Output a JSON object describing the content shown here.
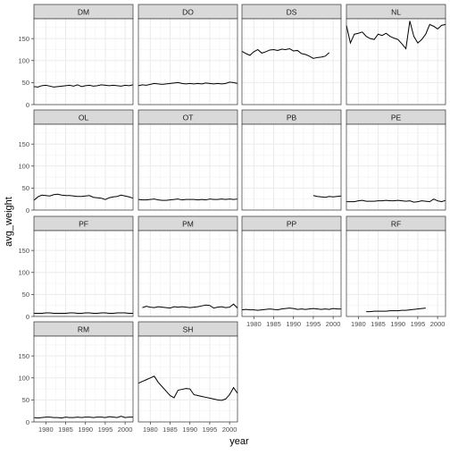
{
  "chart_data": {
    "type": "line",
    "xlabel": "year",
    "ylabel": "avg_weight",
    "xlim": [
      1977,
      2002
    ],
    "ylim": [
      0,
      195
    ],
    "x_ticks": [
      1980,
      1985,
      1990,
      1995,
      2000
    ],
    "x_tick_labels": [
      "1980",
      "1985",
      "1990",
      "1995",
      "2000"
    ],
    "y_ticks": [
      0,
      50,
      100,
      150
    ],
    "y_tick_labels": [
      "0",
      "50",
      "100",
      "150"
    ],
    "grid": true,
    "facets": [
      {
        "name": "DM",
        "x": [
          1977,
          1978,
          1979,
          1980,
          1981,
          1982,
          1983,
          1984,
          1985,
          1986,
          1987,
          1988,
          1989,
          1990,
          1991,
          1992,
          1993,
          1994,
          1995,
          1996,
          1997,
          1998,
          1999,
          2000,
          2001,
          2002
        ],
        "y": [
          41,
          40,
          43,
          44,
          42,
          40,
          41,
          42,
          43,
          44,
          42,
          45,
          41,
          43,
          44,
          42,
          43,
          45,
          44,
          43,
          44,
          43,
          42,
          44,
          43,
          45
        ]
      },
      {
        "name": "DO",
        "x": [
          1977,
          1978,
          1979,
          1980,
          1981,
          1982,
          1983,
          1984,
          1985,
          1986,
          1987,
          1988,
          1989,
          1990,
          1991,
          1992,
          1993,
          1994,
          1995,
          1996,
          1997,
          1998,
          1999,
          2000,
          2001,
          2002
        ],
        "y": [
          43,
          45,
          44,
          46,
          48,
          47,
          46,
          47,
          48,
          49,
          50,
          48,
          47,
          48,
          47,
          48,
          47,
          49,
          48,
          47,
          48,
          47,
          48,
          51,
          50,
          48
        ]
      },
      {
        "name": "DS",
        "x": [
          1977,
          1978,
          1979,
          1980,
          1981,
          1982,
          1983,
          1984,
          1985,
          1986,
          1987,
          1988,
          1989,
          1990,
          1991,
          1992,
          1993,
          1994,
          1995,
          1996,
          1997,
          1998,
          1999
        ],
        "y": [
          121,
          116,
          112,
          120,
          125,
          117,
          120,
          124,
          125,
          123,
          126,
          125,
          127,
          122,
          123,
          116,
          114,
          110,
          105,
          107,
          108,
          110,
          118
        ]
      },
      {
        "name": "NL",
        "x": [
          1977,
          1978,
          1979,
          1980,
          1981,
          1982,
          1983,
          1984,
          1985,
          1986,
          1987,
          1988,
          1989,
          1990,
          1991,
          1992,
          1993,
          1994,
          1995,
          1996,
          1997,
          1998,
          1999,
          2000,
          2001,
          2002
        ],
        "y": [
          180,
          140,
          160,
          162,
          165,
          155,
          150,
          148,
          160,
          157,
          162,
          155,
          151,
          148,
          138,
          127,
          190,
          155,
          140,
          148,
          160,
          182,
          178,
          172,
          180,
          182
        ]
      },
      {
        "name": "OL",
        "x": [
          1977,
          1978,
          1979,
          1980,
          1981,
          1982,
          1983,
          1984,
          1985,
          1986,
          1987,
          1988,
          1989,
          1990,
          1991,
          1992,
          1993,
          1994,
          1995,
          1996,
          1997,
          1998,
          1999,
          2000,
          2001,
          2002
        ],
        "y": [
          22,
          30,
          34,
          33,
          32,
          35,
          36,
          34,
          33,
          33,
          32,
          31,
          31,
          32,
          33,
          29,
          28,
          27,
          24,
          28,
          30,
          31,
          34,
          32,
          30,
          27
        ]
      },
      {
        "name": "OT",
        "x": [
          1977,
          1978,
          1979,
          1980,
          1981,
          1982,
          1983,
          1984,
          1985,
          1986,
          1987,
          1988,
          1989,
          1990,
          1991,
          1992,
          1993,
          1994,
          1995,
          1996,
          1997,
          1998,
          1999,
          2000,
          2001,
          2002
        ],
        "y": [
          24,
          23,
          23,
          24,
          25,
          23,
          22,
          22,
          23,
          24,
          25,
          23,
          24,
          24,
          24,
          23,
          24,
          23,
          25,
          24,
          24,
          25,
          24,
          25,
          24,
          25
        ]
      },
      {
        "name": "PB",
        "x": [
          1995,
          1996,
          1997,
          1998,
          1999,
          2000,
          2001,
          2002
        ],
        "y": [
          33,
          31,
          30,
          29,
          31,
          30,
          31,
          32
        ]
      },
      {
        "name": "PE",
        "x": [
          1977,
          1978,
          1979,
          1980,
          1981,
          1982,
          1983,
          1984,
          1985,
          1986,
          1987,
          1988,
          1989,
          1990,
          1991,
          1992,
          1993,
          1994,
          1995,
          1996,
          1997,
          1998,
          1999,
          2000,
          2001,
          2002
        ],
        "y": [
          19,
          19,
          19,
          21,
          22,
          20,
          20,
          20,
          21,
          21,
          22,
          21,
          21,
          22,
          21,
          20,
          21,
          18,
          19,
          21,
          20,
          19,
          25,
          21,
          19,
          22
        ]
      },
      {
        "name": "PF",
        "x": [
          1977,
          1978,
          1979,
          1980,
          1981,
          1982,
          1983,
          1984,
          1985,
          1986,
          1987,
          1988,
          1989,
          1990,
          1991,
          1992,
          1993,
          1994,
          1995,
          1996,
          1997,
          1998,
          1999,
          2000,
          2001,
          2002
        ],
        "y": [
          7,
          7,
          7,
          8,
          8,
          7,
          7,
          7,
          7,
          8,
          8,
          7,
          7,
          8,
          8,
          7,
          7,
          8,
          8,
          7,
          7,
          8,
          8,
          8,
          7,
          7
        ]
      },
      {
        "name": "PM",
        "x": [
          1978,
          1979,
          1980,
          1981,
          1982,
          1983,
          1984,
          1985,
          1986,
          1987,
          1988,
          1989,
          1990,
          1991,
          1992,
          1993,
          1994,
          1995,
          1996,
          1997,
          1998,
          1999,
          2000,
          2001,
          2002
        ],
        "y": [
          20,
          23,
          21,
          20,
          22,
          21,
          20,
          19,
          22,
          21,
          22,
          21,
          20,
          21,
          22,
          24,
          26,
          25,
          19,
          21,
          22,
          20,
          21,
          28,
          19
        ]
      },
      {
        "name": "PP",
        "x": [
          1977,
          1978,
          1979,
          1980,
          1981,
          1982,
          1983,
          1984,
          1985,
          1986,
          1987,
          1988,
          1989,
          1990,
          1991,
          1992,
          1993,
          1994,
          1995,
          1996,
          1997,
          1998,
          1999,
          2000,
          2001,
          2002
        ],
        "y": [
          15,
          16,
          15,
          15,
          14,
          15,
          16,
          17,
          16,
          15,
          17,
          18,
          19,
          18,
          16,
          17,
          16,
          17,
          18,
          17,
          16,
          17,
          16,
          18,
          17,
          17
        ]
      },
      {
        "name": "RF",
        "x": [
          1982,
          1983,
          1984,
          1985,
          1986,
          1987,
          1988,
          1989,
          1990,
          1991,
          1992,
          1993,
          1994,
          1995,
          1996,
          1997
        ],
        "y": [
          11,
          11,
          12,
          12,
          12,
          12,
          13,
          13,
          13,
          14,
          14,
          15,
          16,
          17,
          18,
          19
        ]
      },
      {
        "name": "RM",
        "x": [
          1977,
          1978,
          1979,
          1980,
          1981,
          1982,
          1983,
          1984,
          1985,
          1986,
          1987,
          1988,
          1989,
          1990,
          1991,
          1992,
          1993,
          1994,
          1995,
          1996,
          1997,
          1998,
          1999,
          2000,
          2001,
          2002
        ],
        "y": [
          10,
          9,
          10,
          11,
          11,
          10,
          10,
          9,
          11,
          10,
          10,
          11,
          10,
          11,
          11,
          10,
          11,
          11,
          10,
          12,
          11,
          10,
          13,
          10,
          11,
          11
        ]
      },
      {
        "name": "SH",
        "x": [
          1977,
          1978,
          1979,
          1980,
          1981,
          1982,
          1983,
          1984,
          1985,
          1986,
          1987,
          1988,
          1989,
          1990,
          1991,
          1992,
          1993,
          1994,
          1995,
          1996,
          1997,
          1998,
          1999,
          2000,
          2001,
          2002
        ],
        "y": [
          88,
          92,
          96,
          100,
          104,
          90,
          80,
          70,
          60,
          55,
          72,
          74,
          76,
          75,
          62,
          60,
          58,
          56,
          54,
          52,
          50,
          49,
          52,
          62,
          78,
          65
        ]
      }
    ]
  }
}
